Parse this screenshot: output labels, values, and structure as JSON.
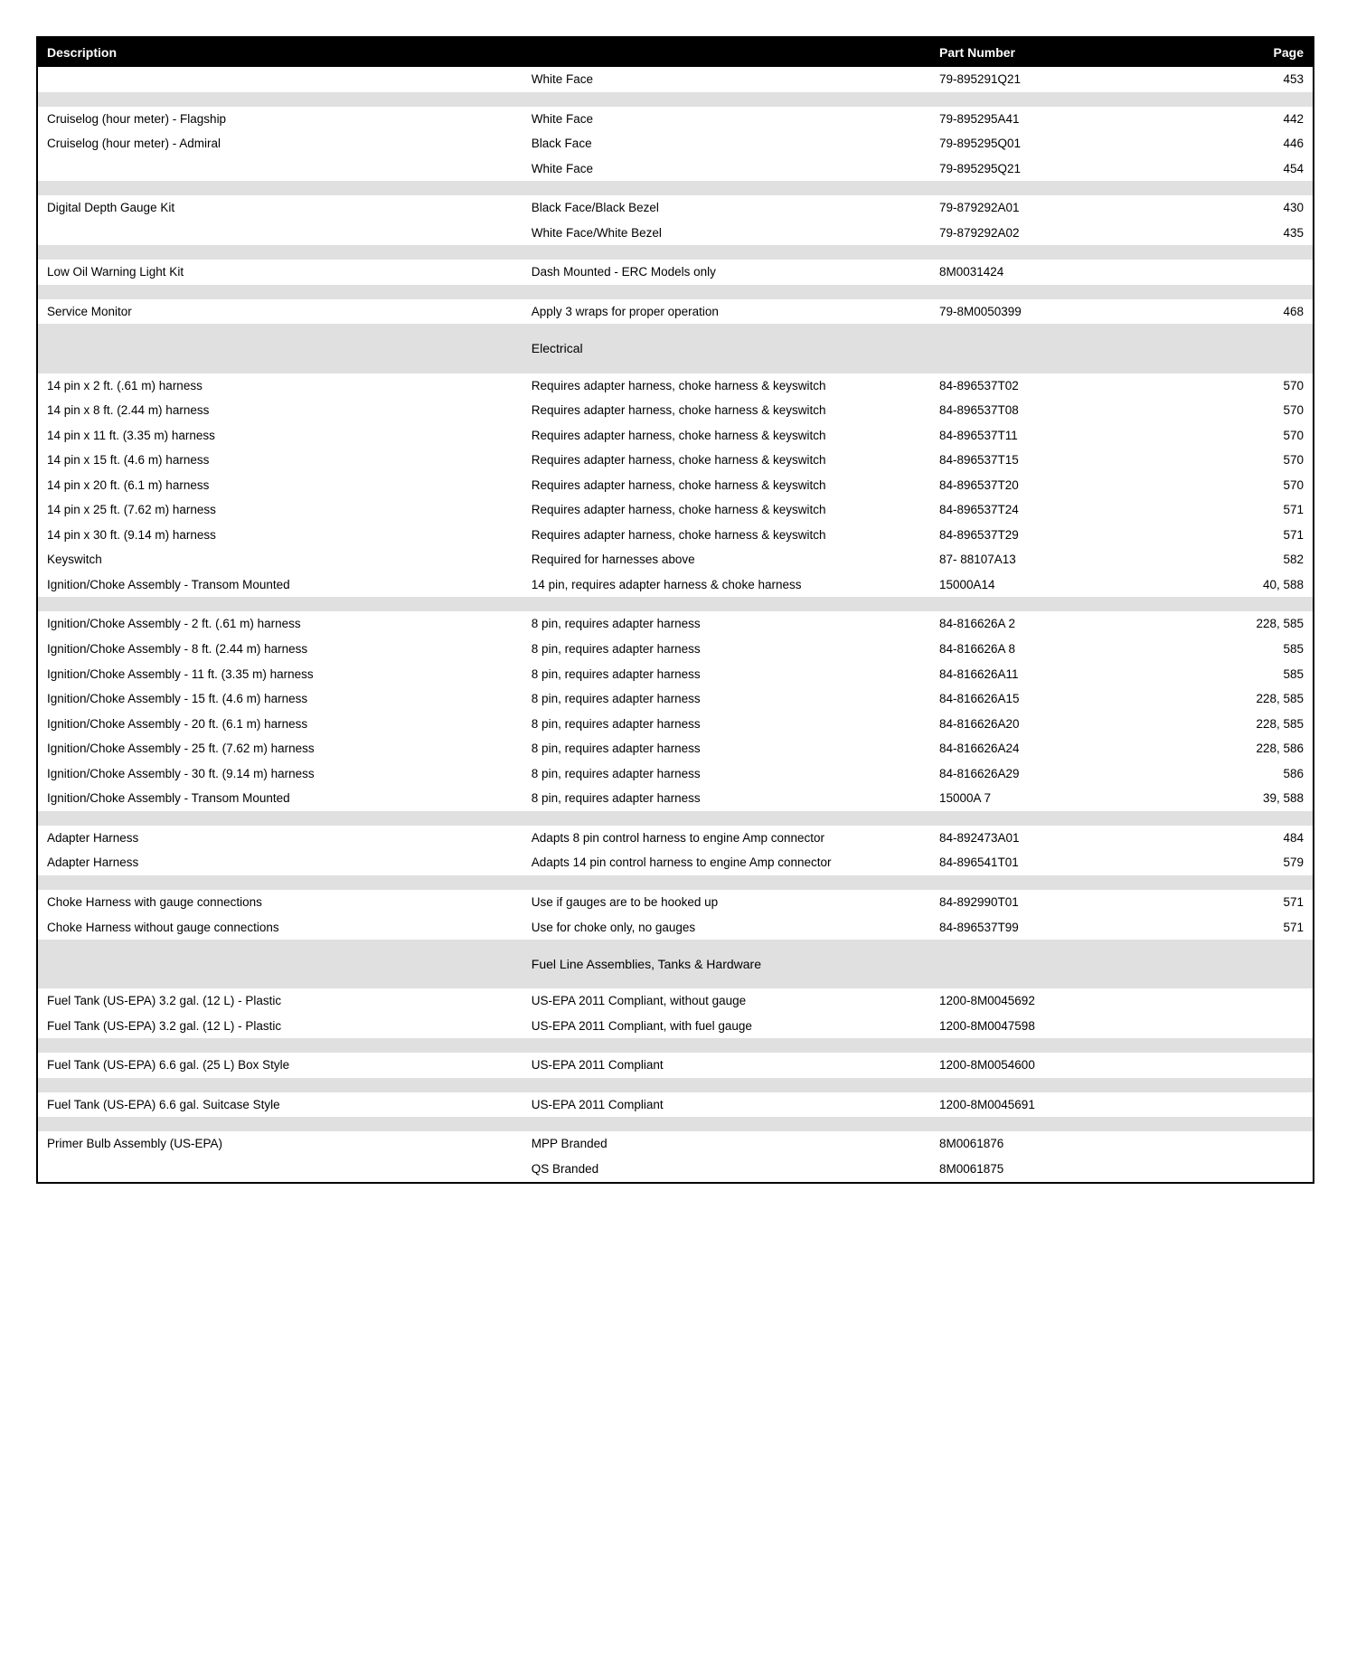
{
  "headers": {
    "description": "Description",
    "part_number": "Part Number",
    "page": "Page"
  },
  "rows": [
    {
      "type": "data",
      "desc": "",
      "detail": "White Face",
      "part": "79-895291Q21",
      "page": "453"
    },
    {
      "type": "separator"
    },
    {
      "type": "data",
      "desc": "Cruiselog (hour meter) - Flagship",
      "detail": "White Face",
      "part": "79-895295A41",
      "page": "442"
    },
    {
      "type": "data",
      "desc": "Cruiselog (hour meter) - Admiral",
      "detail": "Black Face",
      "part": "79-895295Q01",
      "page": "446"
    },
    {
      "type": "data",
      "desc": "",
      "detail": "White Face",
      "part": "79-895295Q21",
      "page": "454"
    },
    {
      "type": "separator"
    },
    {
      "type": "data",
      "desc": "Digital Depth Gauge Kit",
      "detail": "Black Face/Black Bezel",
      "part": "79-879292A01",
      "page": "430"
    },
    {
      "type": "data",
      "desc": "",
      "detail": "White Face/White Bezel",
      "part": "79-879292A02",
      "page": "435"
    },
    {
      "type": "separator"
    },
    {
      "type": "data",
      "desc": "Low Oil Warning Light Kit",
      "detail": "Dash Mounted - ERC Models only",
      "part": "8M0031424",
      "page": ""
    },
    {
      "type": "separator"
    },
    {
      "type": "data",
      "desc": "Service Monitor",
      "detail": "Apply 3 wraps for proper operation",
      "part": "79-8M0050399",
      "page": "468"
    },
    {
      "type": "section",
      "label": "Electrical"
    },
    {
      "type": "data",
      "desc": "14 pin x 2 ft. (.61 m) harness",
      "detail": "Requires adapter harness, choke harness & keyswitch",
      "part": "84-896537T02",
      "page": "570"
    },
    {
      "type": "data",
      "desc": "14 pin x 8 ft. (2.44 m) harness",
      "detail": "Requires adapter harness, choke harness & keyswitch",
      "part": "84-896537T08",
      "page": "570"
    },
    {
      "type": "data",
      "desc": "14 pin x 11 ft. (3.35 m) harness",
      "detail": "Requires adapter harness, choke harness & keyswitch",
      "part": "84-896537T11",
      "page": "570"
    },
    {
      "type": "data",
      "desc": "14 pin x 15 ft. (4.6 m) harness",
      "detail": "Requires adapter harness, choke harness & keyswitch",
      "part": "84-896537T15",
      "page": "570"
    },
    {
      "type": "data",
      "desc": "14 pin x 20 ft. (6.1 m) harness",
      "detail": "Requires adapter harness, choke harness & keyswitch",
      "part": "84-896537T20",
      "page": "570"
    },
    {
      "type": "data",
      "desc": "14 pin x 25 ft. (7.62 m) harness",
      "detail": "Requires adapter harness, choke harness & keyswitch",
      "part": "84-896537T24",
      "page": "571"
    },
    {
      "type": "data",
      "desc": "14 pin x 30 ft. (9.14 m) harness",
      "detail": "Requires adapter harness, choke harness & keyswitch",
      "part": "84-896537T29",
      "page": "571"
    },
    {
      "type": "data",
      "desc": "Keyswitch",
      "detail": "Required for harnesses above",
      "part": "87- 88107A13",
      "page": "582"
    },
    {
      "type": "data",
      "desc": "Ignition/Choke Assembly - Transom Mounted",
      "detail": "14 pin, requires adapter harness & choke harness",
      "part": "15000A14",
      "page": "40, 588"
    },
    {
      "type": "separator"
    },
    {
      "type": "data",
      "desc": "Ignition/Choke Assembly - 2 ft. (.61 m) harness",
      "detail": "8 pin, requires adapter harness",
      "part": "84-816626A 2",
      "page": "228, 585"
    },
    {
      "type": "data",
      "desc": "Ignition/Choke Assembly - 8 ft. (2.44 m) harness",
      "detail": "8 pin, requires adapter harness",
      "part": "84-816626A 8",
      "page": "585"
    },
    {
      "type": "data",
      "desc": "Ignition/Choke Assembly - 11 ft. (3.35 m) harness",
      "detail": "8 pin, requires adapter harness",
      "part": "84-816626A11",
      "page": "585"
    },
    {
      "type": "data",
      "desc": "Ignition/Choke Assembly - 15 ft. (4.6 m) harness",
      "detail": "8 pin, requires adapter harness",
      "part": "84-816626A15",
      "page": "228, 585"
    },
    {
      "type": "data",
      "desc": "Ignition/Choke Assembly - 20 ft. (6.1 m) harness",
      "detail": "8 pin, requires adapter harness",
      "part": "84-816626A20",
      "page": "228, 585"
    },
    {
      "type": "data",
      "desc": "Ignition/Choke Assembly - 25 ft. (7.62 m) harness",
      "detail": "8 pin, requires adapter harness",
      "part": "84-816626A24",
      "page": "228, 586"
    },
    {
      "type": "data",
      "desc": "Ignition/Choke Assembly - 30 ft. (9.14 m) harness",
      "detail": "8 pin, requires adapter harness",
      "part": "84-816626A29",
      "page": "586"
    },
    {
      "type": "data",
      "desc": "Ignition/Choke Assembly - Transom Mounted",
      "detail": "8 pin, requires adapter harness",
      "part": "15000A 7",
      "page": "39, 588"
    },
    {
      "type": "separator"
    },
    {
      "type": "data",
      "desc": "Adapter Harness",
      "detail": "Adapts 8 pin control harness to engine Amp connector",
      "part": "84-892473A01",
      "page": "484"
    },
    {
      "type": "data",
      "desc": "Adapter Harness",
      "detail": "Adapts 14 pin control harness to engine Amp connector",
      "part": "84-896541T01",
      "page": "579"
    },
    {
      "type": "separator"
    },
    {
      "type": "data",
      "desc": "Choke Harness with gauge connections",
      "detail": "Use if gauges are to be hooked up",
      "part": "84-892990T01",
      "page": "571"
    },
    {
      "type": "data",
      "desc": "Choke Harness without gauge connections",
      "detail": "Use for choke only, no gauges",
      "part": "84-896537T99",
      "page": "571"
    },
    {
      "type": "section",
      "label": "Fuel Line Assemblies, Tanks & Hardware"
    },
    {
      "type": "data",
      "desc": "Fuel Tank (US-EPA) 3.2 gal. (12 L) - Plastic",
      "detail": "US-EPA 2011 Compliant, without gauge",
      "part": "1200-8M0045692",
      "page": ""
    },
    {
      "type": "data",
      "desc": "Fuel Tank (US-EPA) 3.2 gal. (12 L) - Plastic",
      "detail": "US-EPA 2011 Compliant, with fuel gauge",
      "part": "1200-8M0047598",
      "page": ""
    },
    {
      "type": "separator"
    },
    {
      "type": "data",
      "desc": "Fuel Tank (US-EPA) 6.6 gal. (25 L) Box Style",
      "detail": "US-EPA 2011 Compliant",
      "part": "1200-8M0054600",
      "page": ""
    },
    {
      "type": "separator"
    },
    {
      "type": "data",
      "desc": "Fuel Tank (US-EPA) 6.6 gal. Suitcase Style",
      "detail": "US-EPA 2011 Compliant",
      "part": "1200-8M0045691",
      "page": ""
    },
    {
      "type": "separator"
    },
    {
      "type": "data",
      "desc": "Primer Bulb Assembly (US-EPA)",
      "detail": "MPP Branded",
      "part": "8M0061876",
      "page": ""
    },
    {
      "type": "data",
      "desc": "",
      "detail": "QS Branded",
      "part": "8M0061875",
      "page": ""
    }
  ]
}
